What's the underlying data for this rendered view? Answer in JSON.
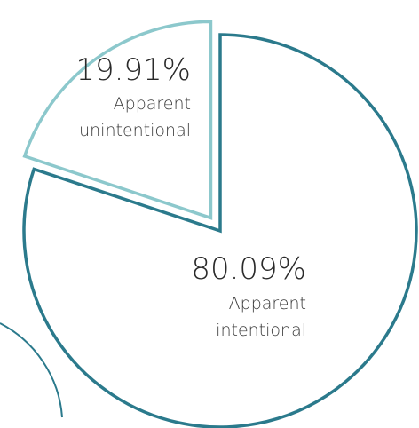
{
  "chart_data": {
    "type": "pie",
    "title": "",
    "slices": [
      {
        "label_line1": "Apparent",
        "label_line2": "intentional",
        "value": 80.09,
        "value_label": "80.09%",
        "color": "#2b7a8c",
        "fill": "#ffffff"
      },
      {
        "label_line1": "Apparent",
        "label_line2": "unintentional",
        "value": 19.91,
        "value_label": "19.91%",
        "color": "#8cc8cc",
        "fill": "#ffffff"
      }
    ]
  }
}
